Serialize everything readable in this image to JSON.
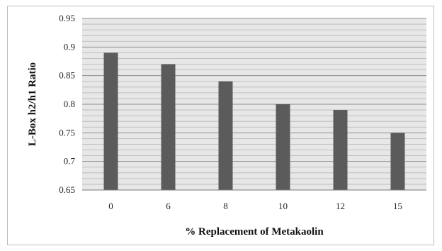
{
  "chart_data": {
    "type": "bar",
    "categories": [
      "0",
      "6",
      "8",
      "10",
      "12",
      "15"
    ],
    "values": [
      0.89,
      0.87,
      0.84,
      0.8,
      0.79,
      0.75
    ],
    "title": "",
    "xlabel": "% Replacement of Metakaolin",
    "ylabel": "L-Box h2/h1 Ratio",
    "ylim": [
      0.65,
      0.95
    ],
    "yticks": [
      "0.65",
      "0.7",
      "0.75",
      "0.8",
      "0.85",
      "0.9",
      "0.95"
    ],
    "grid": true,
    "legend": "none",
    "colors": {
      "bar": "#5b5b5b",
      "plot_background": "#e7e7e7",
      "gridline": "#8c8c8c",
      "minor_gridline": "#b4b4b4"
    }
  }
}
